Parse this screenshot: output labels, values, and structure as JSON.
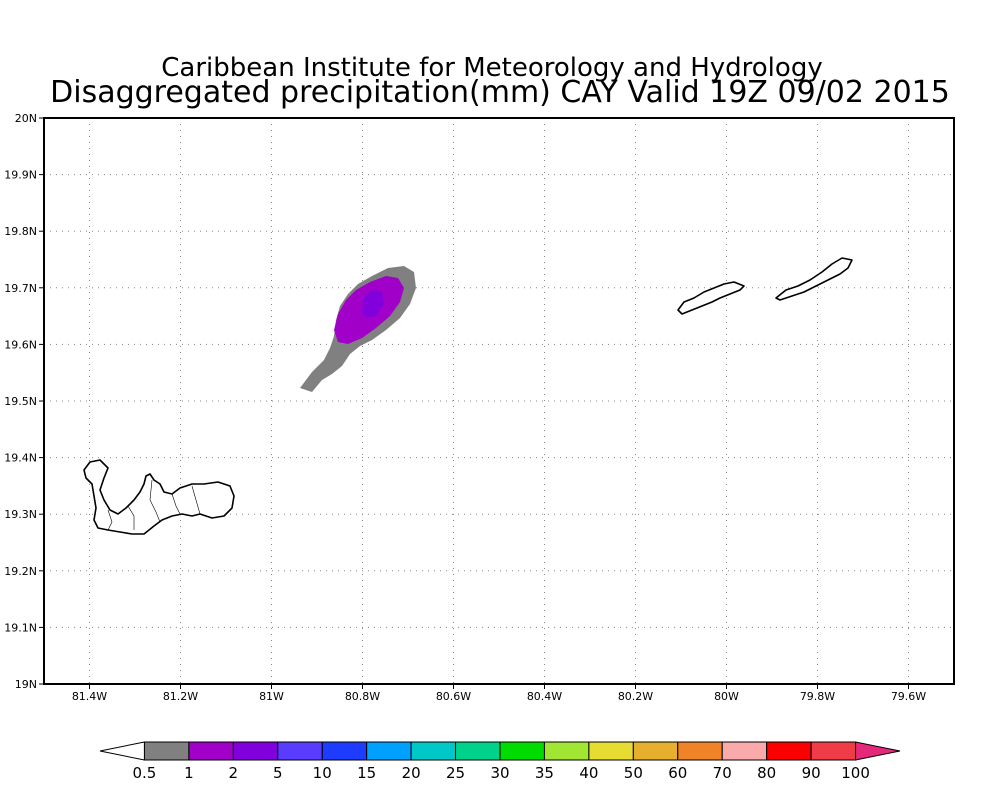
{
  "title": {
    "line1": "Caribbean Institute for Meteorology and Hydrology",
    "line2": "Disaggregated precipitation(mm) CAY Valid 19Z 09/02 2015"
  },
  "map": {
    "lon_range": [
      -81.5,
      -79.5
    ],
    "lat_range": [
      19.0,
      20.0
    ],
    "grid": true,
    "lon_ticks": [
      {
        "value": -81.4,
        "label": "81.4W"
      },
      {
        "value": -81.2,
        "label": "81.2W"
      },
      {
        "value": -81.0,
        "label": "81W"
      },
      {
        "value": -80.8,
        "label": "80.8W"
      },
      {
        "value": -80.6,
        "label": "80.6W"
      },
      {
        "value": -80.4,
        "label": "80.4W"
      },
      {
        "value": -80.2,
        "label": "80.2W"
      },
      {
        "value": -80.0,
        "label": "80W"
      },
      {
        "value": -79.8,
        "label": "79.8W"
      },
      {
        "value": -79.6,
        "label": "79.6W"
      }
    ],
    "lat_ticks": [
      {
        "value": 20.0,
        "label": "20N"
      },
      {
        "value": 19.9,
        "label": "19.9N"
      },
      {
        "value": 19.8,
        "label": "19.8N"
      },
      {
        "value": 19.7,
        "label": "19.7N"
      },
      {
        "value": 19.6,
        "label": "19.6N"
      },
      {
        "value": 19.5,
        "label": "19.5N"
      },
      {
        "value": 19.4,
        "label": "19.4N"
      },
      {
        "value": 19.3,
        "label": "19.3N"
      },
      {
        "value": 19.2,
        "label": "19.2N"
      },
      {
        "value": 19.1,
        "label": "19.1N"
      },
      {
        "value": 19.0,
        "label": "19N"
      }
    ]
  },
  "colorbar": {
    "labels": [
      "0.5",
      "1",
      "2",
      "5",
      "10",
      "15",
      "20",
      "25",
      "30",
      "35",
      "40",
      "50",
      "60",
      "70",
      "80",
      "90",
      "100"
    ],
    "colors": [
      "#ffffff",
      "#808080",
      "#a000c8",
      "#8200dc",
      "#5a3cff",
      "#1e3cff",
      "#00a0ff",
      "#00c8c8",
      "#00d28c",
      "#00dc00",
      "#a0e632",
      "#e6dc32",
      "#e6af2d",
      "#f08228",
      "#faaaaa",
      "#fa0000",
      "#f03c46",
      "#e6287a"
    ]
  },
  "colors": {
    "rain_low": "#808080",
    "rain_mid": "#a000c8",
    "rain_core": "#8200dc",
    "coastline": "#000000"
  }
}
